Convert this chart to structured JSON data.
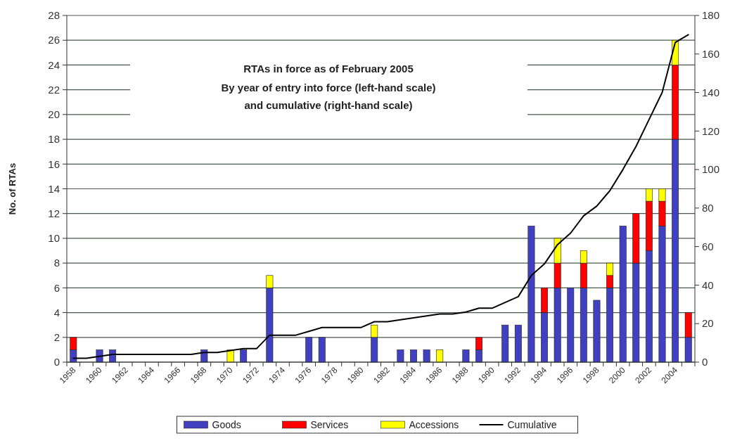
{
  "chart_data": {
    "type": "bar",
    "stacked": true,
    "title": "RTAs in force as of February 2005",
    "subtitle": "By year of entry into force (left-hand scale)\nand cumulative (right-hand scale)",
    "ylabel": "No. of RTAs",
    "categories": [
      "1958",
      null,
      "1960",
      null,
      "1962",
      null,
      "1964",
      null,
      "1966",
      null,
      "1968",
      null,
      "1970",
      null,
      "1972",
      null,
      "1974",
      null,
      "1976",
      null,
      "1978",
      null,
      "1980",
      null,
      "1982",
      null,
      "1984",
      null,
      "1986",
      null,
      "1988",
      null,
      "1990",
      null,
      "1992",
      null,
      "1994",
      null,
      "1996",
      null,
      "1998",
      null,
      "2000",
      null,
      "2002",
      null,
      "2004",
      null
    ],
    "series": [
      {
        "name": "Goods",
        "color": "#4040c0",
        "values": [
          1,
          0,
          1,
          1,
          0,
          0,
          0,
          0,
          0,
          0,
          1,
          0,
          0,
          1,
          0,
          6,
          0,
          0,
          2,
          2,
          0,
          0,
          0,
          2,
          0,
          1,
          1,
          1,
          0,
          0,
          1,
          1,
          0,
          3,
          3,
          11,
          4,
          6,
          6,
          6,
          5,
          6,
          11,
          8,
          9,
          11,
          18,
          2
        ]
      },
      {
        "name": "Services",
        "color": "#ff0000",
        "values": [
          1,
          0,
          0,
          0,
          0,
          0,
          0,
          0,
          0,
          0,
          0,
          0,
          0,
          0,
          0,
          0,
          0,
          0,
          0,
          0,
          0,
          0,
          0,
          0,
          0,
          0,
          0,
          0,
          0,
          0,
          0,
          1,
          0,
          0,
          0,
          0,
          2,
          2,
          0,
          2,
          0,
          1,
          0,
          4,
          4,
          2,
          6,
          2
        ]
      },
      {
        "name": "Accessions",
        "color": "#ffff00",
        "values": [
          0,
          0,
          0,
          0,
          0,
          0,
          0,
          0,
          0,
          0,
          0,
          0,
          1,
          0,
          0,
          1,
          0,
          0,
          0,
          0,
          0,
          0,
          0,
          1,
          0,
          0,
          0,
          0,
          1,
          0,
          0,
          0,
          0,
          0,
          0,
          0,
          0,
          2,
          0,
          1,
          0,
          1,
          0,
          0,
          1,
          1,
          2,
          0
        ]
      },
      {
        "name": "Cumulative",
        "type": "line",
        "axis": "y2",
        "color": "#000000",
        "values": [
          2,
          2,
          3,
          4,
          4,
          4,
          4,
          4,
          4,
          4,
          5,
          5,
          6,
          7,
          7,
          14,
          14,
          14,
          16,
          18,
          18,
          18,
          18,
          21,
          21,
          22,
          23,
          24,
          25,
          25,
          26,
          28,
          28,
          31,
          34,
          45,
          51,
          61,
          67,
          76,
          81,
          89,
          100,
          112,
          126,
          140,
          166,
          170
        ]
      }
    ],
    "ylim": [
      0,
      28
    ],
    "yticks": [
      0,
      2,
      4,
      6,
      8,
      10,
      12,
      14,
      16,
      18,
      20,
      22,
      24,
      26,
      28
    ],
    "y2lim": [
      0,
      180
    ],
    "y2ticks": [
      0,
      20,
      40,
      60,
      80,
      100,
      120,
      140,
      160,
      180
    ],
    "grid": "y",
    "legend": "bottom"
  }
}
